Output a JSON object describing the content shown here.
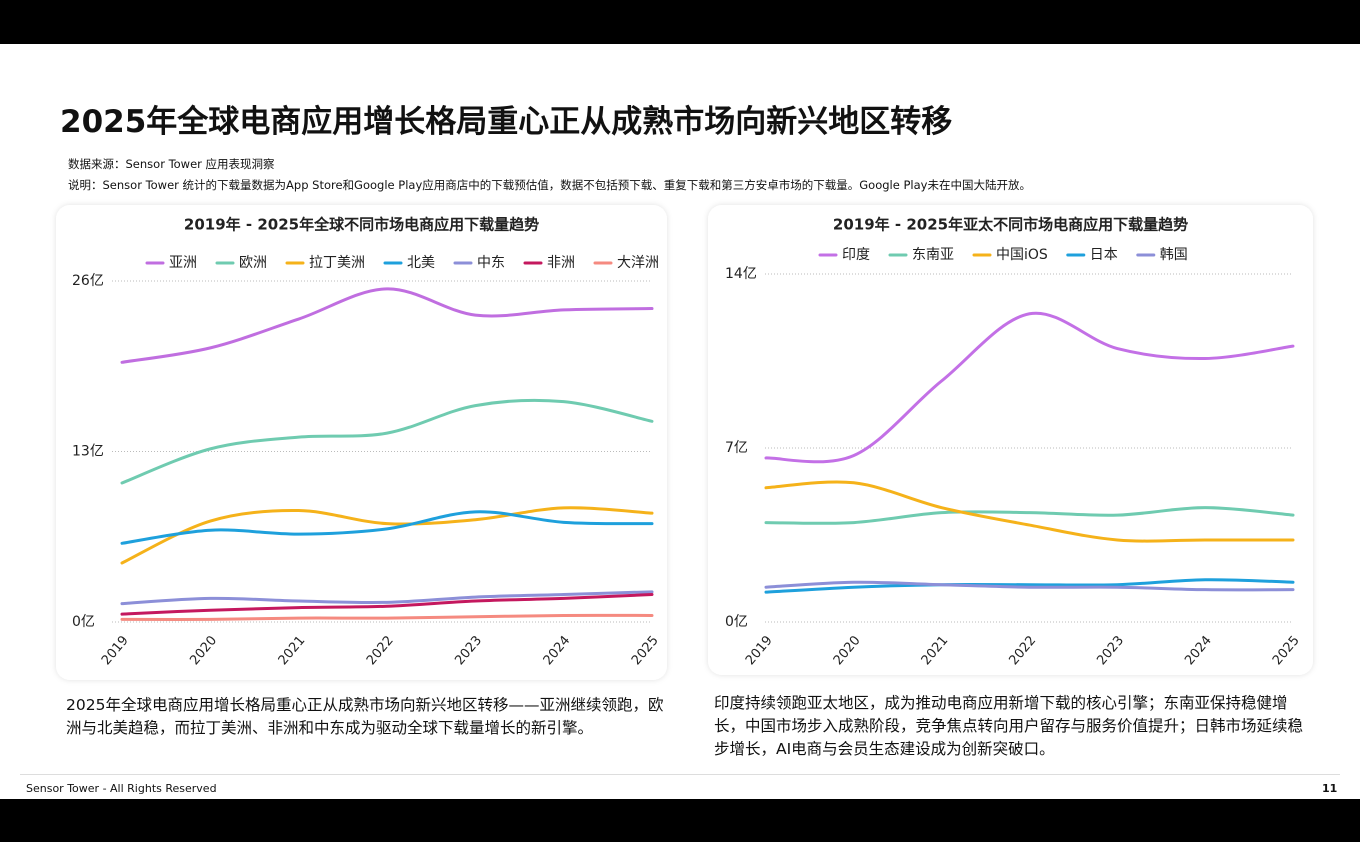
{
  "header": {
    "title": "2025年全球电商应用增长格局重心正从成熟市场向新兴地区转移",
    "source": "数据来源：Sensor Tower 应用表现洞察",
    "note": "说明：Sensor Tower 统计的下载量数据为App Store和Google Play应用商店中的下载预估值，数据不包括预下载、重复下载和第三方安卓市场的下载量。Google Play未在中国大陆开放。"
  },
  "chart_data": [
    {
      "type": "line",
      "title": "2019年 - 2025年全球不同市场电商应用下载量趋势",
      "categories": [
        "2019",
        "2020",
        "2021",
        "2022",
        "2023",
        "2024",
        "2025"
      ],
      "series": [
        {
          "name": "亚洲",
          "color": "#c06ee0",
          "values": [
            19.8,
            20.9,
            23.1,
            25.4,
            23.4,
            23.8,
            23.9
          ]
        },
        {
          "name": "欧洲",
          "color": "#6fcbb0",
          "values": [
            10.6,
            13.2,
            14.1,
            14.4,
            16.5,
            16.8,
            15.3
          ]
        },
        {
          "name": "拉丁美洲",
          "color": "#f5b21a",
          "values": [
            4.5,
            7.7,
            8.5,
            7.5,
            7.8,
            8.7,
            8.3
          ]
        },
        {
          "name": "北美",
          "color": "#1ea0dc",
          "values": [
            6.0,
            7.0,
            6.7,
            7.1,
            8.4,
            7.6,
            7.5
          ]
        },
        {
          "name": "中东",
          "color": "#8c8fd8",
          "values": [
            1.4,
            1.8,
            1.6,
            1.5,
            1.9,
            2.1,
            2.3
          ]
        },
        {
          "name": "非洲",
          "color": "#c4185e",
          "values": [
            0.6,
            0.9,
            1.1,
            1.2,
            1.6,
            1.8,
            2.1
          ]
        },
        {
          "name": "大洋洲",
          "color": "#f58a80",
          "values": [
            0.2,
            0.2,
            0.3,
            0.3,
            0.4,
            0.5,
            0.5
          ]
        }
      ],
      "ylim": [
        0,
        26
      ],
      "yticks": [
        {
          "value": 0,
          "label": "0亿"
        },
        {
          "value": 13,
          "label": "13亿"
        },
        {
          "value": 26,
          "label": "26亿"
        }
      ],
      "grid": true
    },
    {
      "type": "line",
      "title": "2019年 - 2025年亚太不同市场电商应用下载量趋势",
      "categories": [
        "2019",
        "2020",
        "2021",
        "2022",
        "2023",
        "2024",
        "2025"
      ],
      "series": [
        {
          "name": "印度",
          "color": "#c370e6",
          "values": [
            6.6,
            6.7,
            9.7,
            12.4,
            11.0,
            10.6,
            11.1
          ]
        },
        {
          "name": "东南亚",
          "color": "#6fcbb0",
          "values": [
            4.0,
            4.0,
            4.4,
            4.4,
            4.3,
            4.6,
            4.3
          ]
        },
        {
          "name": "中国iOS",
          "color": "#f5b21a",
          "values": [
            5.4,
            5.6,
            4.6,
            3.9,
            3.3,
            3.3,
            3.3
          ]
        },
        {
          "name": "日本",
          "color": "#1ea0dc",
          "values": [
            1.2,
            1.4,
            1.5,
            1.5,
            1.5,
            1.7,
            1.6
          ]
        },
        {
          "name": "韩国",
          "color": "#8c8fd8",
          "values": [
            1.4,
            1.6,
            1.5,
            1.4,
            1.4,
            1.3,
            1.3
          ]
        }
      ],
      "ylim": [
        0,
        14
      ],
      "yticks": [
        {
          "value": 0,
          "label": "0亿"
        },
        {
          "value": 7,
          "label": "7亿"
        },
        {
          "value": 14,
          "label": "14亿"
        }
      ],
      "grid": true
    }
  ],
  "captions": [
    "2025年全球电商应用增长格局重心正从成熟市场向新兴地区转移——亚洲继续领跑，欧洲与北美趋稳，而拉丁美洲、非洲和中东成为驱动全球下载量增长的新引擎。",
    "印度持续领跑亚太地区，成为推动电商应用新增下载的核心引擎；东南亚保持稳健增长，中国市场步入成熟阶段，竞争焦点转向用户留存与服务价值提升；日韩市场延续稳步增长，AI电商与会员生态建设成为创新突破口。"
  ],
  "footer": {
    "copyright": "Sensor Tower - All Rights Reserved",
    "page": "11"
  }
}
